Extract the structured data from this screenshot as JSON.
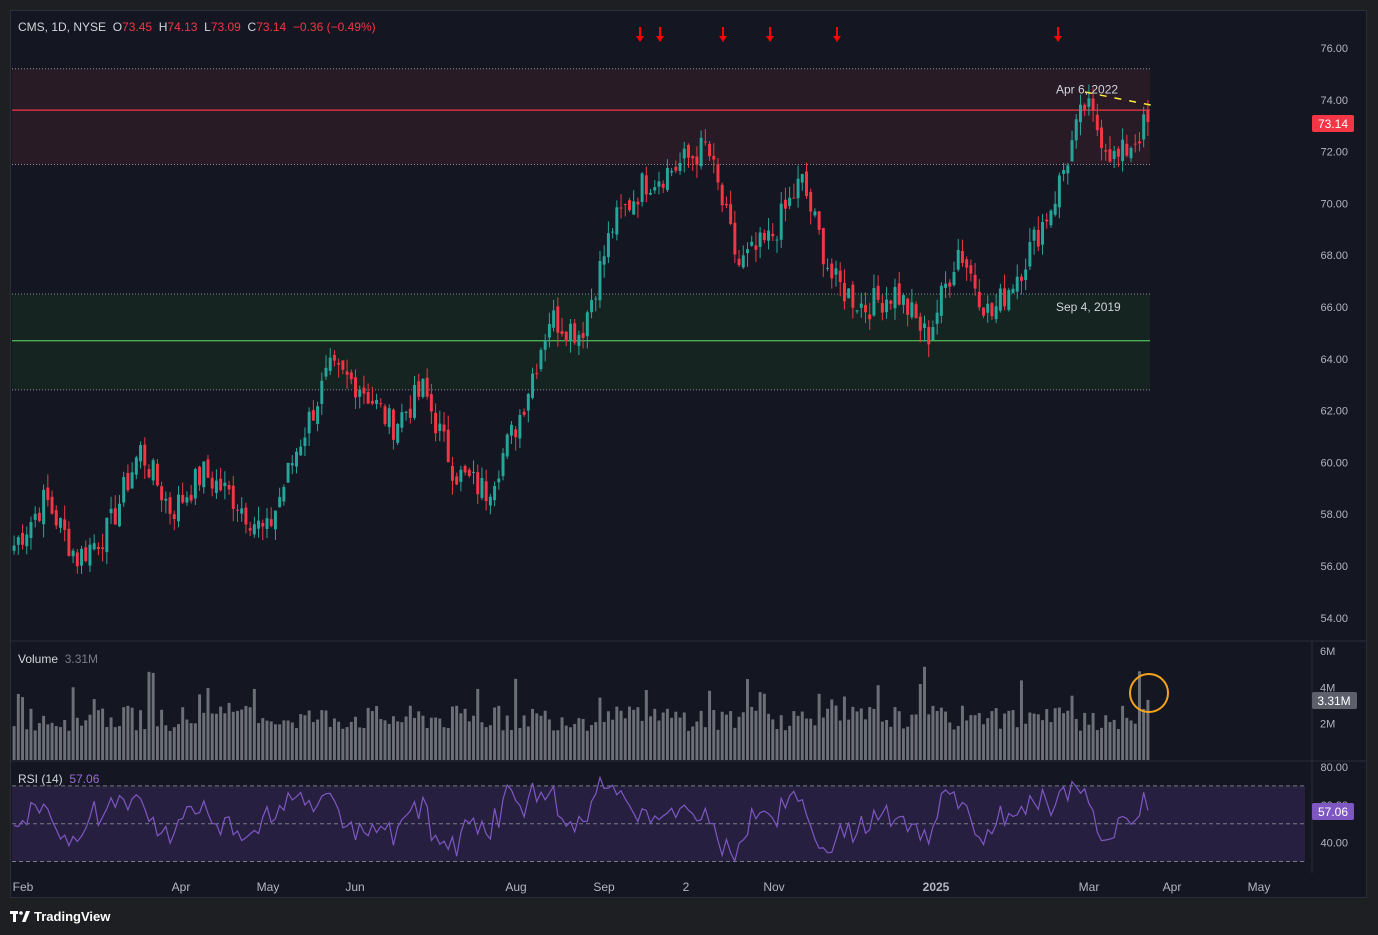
{
  "header": {
    "symbol_line": "CMS, 1D, NYSE",
    "open_label": "O",
    "open": "73.45",
    "high_label": "H",
    "high": "74.13",
    "low_label": "L",
    "low": "73.09",
    "close_label": "C",
    "close": "73.14",
    "change": "−0.36 (−0.49%)"
  },
  "volume_panel": {
    "label": "Volume",
    "value": "3.31M",
    "badge": "3.31M"
  },
  "rsi_panel": {
    "label": "RSI (14)",
    "value": "57.06",
    "badge": "57.06"
  },
  "price_badge": "73.14",
  "brand": "TradingView",
  "colors": {
    "up": "#26a69a",
    "down": "#f23645",
    "resistance": "#f23645",
    "support": "#4caf50",
    "rsi_line": "#7e57c2",
    "marker": "#ff0000",
    "highlight_circle": "#f7a21b",
    "trendline": "#ffeb3b"
  },
  "chart_data": [
    {
      "type": "candlestick",
      "title": "CMS, 1D, NYSE",
      "ylim": [
        53,
        77
      ],
      "y_ticks": [
        "76.00",
        "74.00",
        "72.00",
        "70.00",
        "68.00",
        "66.00",
        "64.00",
        "62.00",
        "60.00",
        "58.00",
        "56.00",
        "54.00"
      ],
      "x_ticks": [
        "Feb",
        "Apr",
        "May",
        "Jun",
        "Aug",
        "Sep",
        "2",
        "Nov",
        "2025",
        "Mar",
        "Apr",
        "May"
      ],
      "anchors": [
        {
          "date": "Feb",
          "close": 56.8
        },
        {
          "date": "Feb",
          "close": 58.6
        },
        {
          "date": "Feb",
          "close": 56.3
        },
        {
          "date": "Mar",
          "close": 57.4
        },
        {
          "date": "Mar",
          "close": 60.5
        },
        {
          "date": "Mar",
          "close": 58.1
        },
        {
          "date": "Apr",
          "close": 59.6
        },
        {
          "date": "Apr",
          "close": 58.6
        },
        {
          "date": "Apr",
          "close": 57.2
        },
        {
          "date": "May",
          "close": 60.6
        },
        {
          "date": "May",
          "close": 63.5
        },
        {
          "date": "May",
          "close": 63.0
        },
        {
          "date": "Jun",
          "close": 61.4
        },
        {
          "date": "Jun",
          "close": 62.8
        },
        {
          "date": "Jun",
          "close": 59.6
        },
        {
          "date": "Jul",
          "close": 58.9
        },
        {
          "date": "Jul",
          "close": 61.6
        },
        {
          "date": "Aug",
          "close": 65.6
        },
        {
          "date": "Aug",
          "close": 65.0
        },
        {
          "date": "Sep",
          "close": 69.1
        },
        {
          "date": "Sep",
          "close": 70.8
        },
        {
          "date": "Oct",
          "close": 71.4
        },
        {
          "date": "Oct",
          "close": 72.2
        },
        {
          "date": "Oct",
          "close": 67.6
        },
        {
          "date": "Nov",
          "close": 68.6
        },
        {
          "date": "Nov",
          "close": 70.9
        },
        {
          "date": "Nov",
          "close": 67.0
        },
        {
          "date": "Dec",
          "close": 66.0
        },
        {
          "date": "Dec",
          "close": 66.6
        },
        {
          "date": "Dec",
          "close": 64.8
        },
        {
          "date": "2025",
          "close": 68.3
        },
        {
          "date": "Jan",
          "close": 65.6
        },
        {
          "date": "Jan",
          "close": 67.6
        },
        {
          "date": "Feb",
          "close": 70.1
        },
        {
          "date": "Feb",
          "close": 73.8
        },
        {
          "date": "Mar",
          "close": 71.6
        },
        {
          "date": "Mar",
          "close": 73.14
        }
      ],
      "resistance_level": 73.6,
      "resistance_zone": [
        71.5,
        75.2
      ],
      "resistance_label": "Apr 6, 2022",
      "support_level": 64.7,
      "support_zone": [
        62.8,
        66.5
      ],
      "support_label": "Sep 4, 2019",
      "marker_count": 6
    },
    {
      "type": "bar",
      "title": "Volume",
      "y_ticks": [
        "6M",
        "4M",
        "2M"
      ],
      "ylim": [
        0,
        6.5
      ],
      "last_value": 3.31
    },
    {
      "type": "line",
      "title": "RSI (14)",
      "y_ticks": [
        "80.00",
        "60.00",
        "40.00"
      ],
      "ylim": [
        20,
        80
      ],
      "bands": [
        30,
        50,
        70
      ],
      "last_value": 57.06
    }
  ]
}
